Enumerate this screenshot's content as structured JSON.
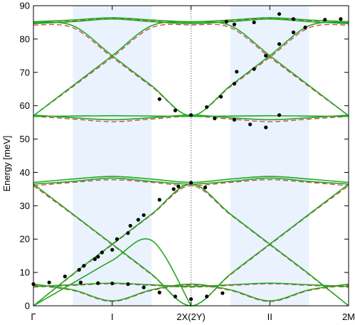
{
  "chart_data": {
    "type": "line",
    "ylabel": "Energy [meV]",
    "ylim": [
      0,
      90
    ],
    "y_ticks": [
      0,
      10,
      20,
      30,
      40,
      50,
      60,
      70,
      80,
      90
    ],
    "xlim": [
      0,
      4
    ],
    "x_ticks": [
      {
        "x": 0,
        "label": "Γ"
      },
      {
        "x": 1,
        "label": "I"
      },
      {
        "x": 2,
        "label": "2X(2Y)"
      },
      {
        "x": 3,
        "label": "II"
      },
      {
        "x": 4,
        "label": "2M"
      }
    ],
    "highlight_bands": [
      [
        0.5,
        1.5
      ],
      [
        2.5,
        3.5
      ]
    ],
    "highlight_color": "#eaf2fd",
    "divider_x": 2,
    "green_color": "#22a822",
    "red_color": "#cc4444",
    "point_color": "#000000",
    "green_curves": [
      {
        "x": [
          0,
          0.5,
          1,
          1.5,
          2
        ],
        "y": [
          0,
          6.8,
          13.6,
          19.6,
          0
        ]
      },
      {
        "x": [
          0,
          0.5,
          1,
          1.5,
          2,
          2.5,
          3,
          3.5,
          4
        ],
        "y": [
          0,
          9.5,
          18.5,
          27.5,
          36.5,
          27.5,
          18.5,
          9.5,
          0
        ]
      },
      {
        "x": [
          0,
          0.5,
          1,
          1.5,
          2,
          2.5,
          3,
          3.5,
          4
        ],
        "y": [
          36.5,
          27.5,
          18.5,
          9.5,
          0,
          9.5,
          18.5,
          27.5,
          36.5
        ]
      },
      {
        "x": [
          0,
          0.5,
          1,
          1.5,
          2,
          2.5,
          3,
          3.5,
          4
        ],
        "y": [
          6.5,
          4.8,
          1.5,
          4.8,
          6.5,
          4.8,
          1.5,
          4.8,
          6.5
        ]
      },
      {
        "x": [
          0,
          0.5,
          1,
          1.5,
          2,
          2.5,
          3,
          3.5,
          4
        ],
        "y": [
          5.8,
          6.3,
          6.8,
          6.3,
          5.8,
          6.3,
          6.8,
          6.3,
          5.8
        ]
      },
      {
        "x": [
          0,
          0.5,
          1,
          1.5,
          2,
          2.5,
          3,
          3.5,
          4
        ],
        "y": [
          37.0,
          38.0,
          38.8,
          38.0,
          37.0,
          38.0,
          38.8,
          38.0,
          37.0
        ]
      },
      {
        "x": [
          0,
          0.5,
          1,
          1.5,
          2,
          2.5,
          3,
          3.5,
          4
        ],
        "y": [
          36.5,
          37.3,
          38.3,
          37.3,
          36.5,
          37.3,
          38.3,
          37.3,
          36.5
        ]
      },
      {
        "x": [
          0,
          0.5,
          1,
          1.5,
          2,
          2.5,
          3,
          3.5,
          4
        ],
        "y": [
          57.0,
          66.0,
          75.0,
          84.0,
          85.0,
          84.0,
          75.0,
          66.0,
          57.0
        ]
      },
      {
        "x": [
          0,
          0.5,
          1,
          1.5,
          2,
          2.5,
          3,
          3.5,
          4
        ],
        "y": [
          85.0,
          84.0,
          75.0,
          66.0,
          57.0,
          66.0,
          75.0,
          84.0,
          85.0
        ]
      },
      {
        "x": [
          0,
          0.5,
          1,
          1.5,
          2,
          2.5,
          3,
          3.5,
          4
        ],
        "y": [
          57.2,
          56.4,
          55.8,
          56.4,
          57.2,
          56.4,
          55.8,
          56.4,
          57.2
        ]
      },
      {
        "x": [
          0,
          0.5,
          1,
          1.5,
          2,
          2.5,
          3,
          3.5,
          4
        ],
        "y": [
          56.8,
          56.9,
          57.0,
          56.9,
          56.8,
          56.9,
          57.0,
          56.9,
          56.8
        ]
      },
      {
        "x": [
          0,
          0.5,
          1,
          1.5,
          2,
          2.5,
          3,
          3.5,
          4
        ],
        "y": [
          85.2,
          85.7,
          86.4,
          85.7,
          85.2,
          85.7,
          86.4,
          85.7,
          85.2
        ]
      },
      {
        "x": [
          0,
          0.5,
          1,
          1.5,
          2,
          2.5,
          3,
          3.5,
          4
        ],
        "y": [
          84.6,
          85.2,
          86.0,
          85.2,
          84.6,
          85.2,
          86.0,
          85.2,
          84.6
        ]
      }
    ],
    "red_curves": [
      {
        "x": [
          0,
          0.5,
          1,
          1.5,
          2,
          2.5,
          3,
          3.5,
          4
        ],
        "y": [
          0,
          9.3,
          18.3,
          27.3,
          36.0,
          27.3,
          18.3,
          9.3,
          0
        ]
      },
      {
        "x": [
          0,
          0.5,
          1,
          1.5,
          2,
          2.5,
          3,
          3.5,
          4
        ],
        "y": [
          36.0,
          27.3,
          18.3,
          9.3,
          0,
          9.3,
          18.3,
          27.3,
          36.0
        ]
      },
      {
        "x": [
          0,
          0.5,
          1,
          1.5,
          2,
          2.5,
          3,
          3.5,
          4
        ],
        "y": [
          6.2,
          4.6,
          1.3,
          4.6,
          6.2,
          4.6,
          1.3,
          4.6,
          6.2
        ]
      },
      {
        "x": [
          0,
          0.5,
          1,
          1.5,
          2,
          2.5,
          3,
          3.5,
          4
        ],
        "y": [
          5.6,
          6.1,
          6.6,
          6.1,
          5.6,
          6.1,
          6.6,
          6.1,
          5.6
        ]
      },
      {
        "x": [
          0,
          0.5,
          1,
          1.5,
          2,
          2.5,
          3,
          3.5,
          4
        ],
        "y": [
          36.0,
          37.0,
          37.8,
          37.0,
          36.0,
          37.0,
          37.8,
          37.0,
          36.0
        ]
      },
      {
        "x": [
          0,
          0.5,
          1,
          1.5,
          2,
          2.5,
          3,
          3.5,
          4
        ],
        "y": [
          57.0,
          65.7,
          74.5,
          83.4,
          84.2,
          83.4,
          74.5,
          65.7,
          57.0
        ]
      },
      {
        "x": [
          0,
          0.5,
          1,
          1.5,
          2,
          2.5,
          3,
          3.5,
          4
        ],
        "y": [
          84.2,
          83.4,
          74.5,
          65.7,
          57.0,
          65.7,
          74.5,
          83.4,
          84.2
        ]
      },
      {
        "x": [
          0,
          0.5,
          1,
          1.5,
          2,
          2.5,
          3,
          3.5,
          4
        ],
        "y": [
          56.8,
          56.0,
          55.2,
          56.0,
          56.8,
          56.0,
          55.2,
          56.0,
          56.8
        ]
      },
      {
        "x": [
          0,
          0.5,
          1,
          1.5,
          2,
          2.5,
          3,
          3.5,
          4
        ],
        "y": [
          84.6,
          85.4,
          86.2,
          85.4,
          84.6,
          85.4,
          86.2,
          85.4,
          84.6
        ]
      }
    ],
    "data_points": [
      {
        "x": 0.0,
        "y": 6.5
      },
      {
        "x": 0.2,
        "y": 7.0
      },
      {
        "x": 0.4,
        "y": 8.8
      },
      {
        "x": 0.58,
        "y": 10.8
      },
      {
        "x": 0.64,
        "y": 12.0
      },
      {
        "x": 0.78,
        "y": 14.0
      },
      {
        "x": 0.82,
        "y": 14.7
      },
      {
        "x": 0.87,
        "y": 16.0
      },
      {
        "x": 1.0,
        "y": 16.8
      },
      {
        "x": 1.06,
        "y": 20.0
      },
      {
        "x": 1.2,
        "y": 21.8
      },
      {
        "x": 1.23,
        "y": 24.0
      },
      {
        "x": 1.33,
        "y": 25.8
      },
      {
        "x": 1.4,
        "y": 27.2
      },
      {
        "x": 1.6,
        "y": 31.8
      },
      {
        "x": 1.78,
        "y": 35.0
      },
      {
        "x": 1.84,
        "y": 35.8
      },
      {
        "x": 2.0,
        "y": 36.9
      },
      {
        "x": 2.18,
        "y": 35.5
      },
      {
        "x": 0.6,
        "y": 7.0
      },
      {
        "x": 0.82,
        "y": 6.8
      },
      {
        "x": 1.0,
        "y": 6.7
      },
      {
        "x": 1.2,
        "y": 6.5
      },
      {
        "x": 1.4,
        "y": 5.5
      },
      {
        "x": 1.6,
        "y": 4.0
      },
      {
        "x": 1.8,
        "y": 2.8
      },
      {
        "x": 2.0,
        "y": 2.0
      },
      {
        "x": 2.2,
        "y": 2.8
      },
      {
        "x": 2.4,
        "y": 3.8
      },
      {
        "x": 1.6,
        "y": 62.0
      },
      {
        "x": 1.8,
        "y": 58.6
      },
      {
        "x": 2.0,
        "y": 57.2
      },
      {
        "x": 2.2,
        "y": 59.6
      },
      {
        "x": 2.38,
        "y": 62.7
      },
      {
        "x": 2.55,
        "y": 66.6
      },
      {
        "x": 2.58,
        "y": 70.2
      },
      {
        "x": 2.8,
        "y": 71.0
      },
      {
        "x": 2.95,
        "y": 75.0
      },
      {
        "x": 3.12,
        "y": 78.5
      },
      {
        "x": 3.3,
        "y": 82.0
      },
      {
        "x": 3.45,
        "y": 83.5
      },
      {
        "x": 2.3,
        "y": 56.2
      },
      {
        "x": 2.55,
        "y": 55.8
      },
      {
        "x": 2.75,
        "y": 54.4
      },
      {
        "x": 2.95,
        "y": 53.5
      },
      {
        "x": 3.12,
        "y": 57.2
      },
      {
        "x": 2.45,
        "y": 85.2
      },
      {
        "x": 2.55,
        "y": 84.4
      },
      {
        "x": 2.8,
        "y": 85.0
      },
      {
        "x": 3.12,
        "y": 87.5
      },
      {
        "x": 3.3,
        "y": 86.0
      },
      {
        "x": 3.7,
        "y": 85.8
      },
      {
        "x": 3.9,
        "y": 86.0
      }
    ]
  }
}
